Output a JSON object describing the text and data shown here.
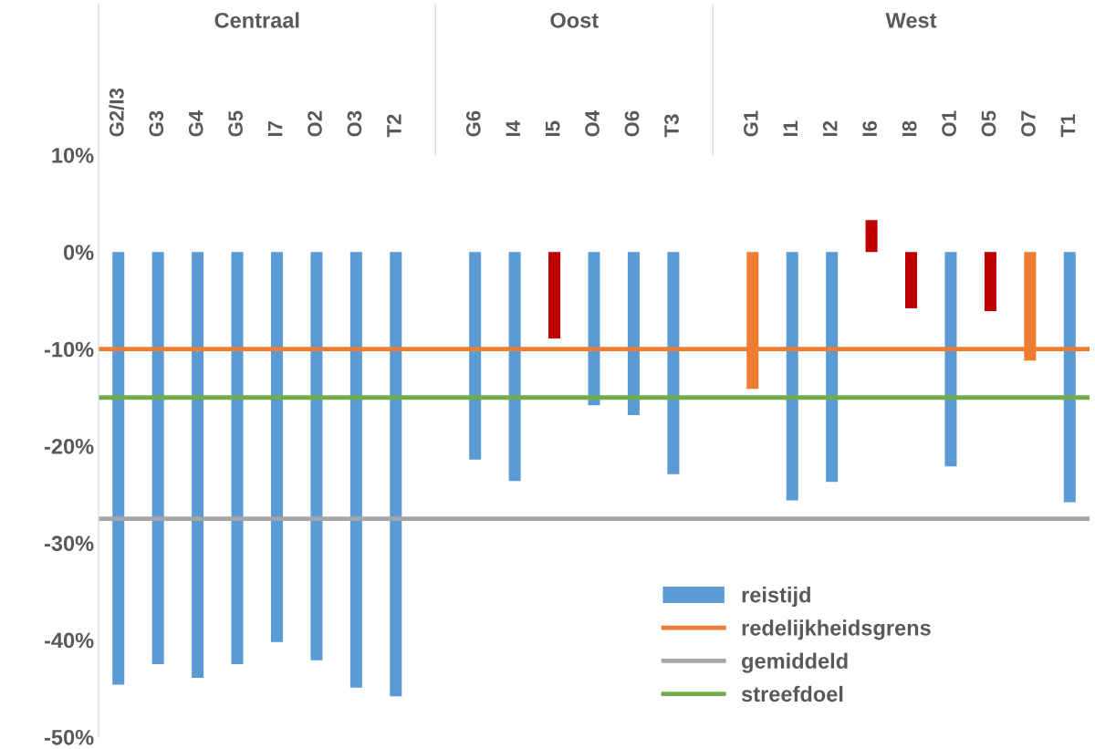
{
  "chart_data": {
    "type": "bar",
    "categories": [
      "G2/I3",
      "G3",
      "G4",
      "G5",
      "I7",
      "O2",
      "O3",
      "T2",
      null,
      "G6",
      "I4",
      "I5",
      "O4",
      "O6",
      "T3",
      null,
      "G1",
      "I1",
      "I2",
      "I6",
      "I8",
      "O1",
      "O5",
      "O7",
      "T1"
    ],
    "series": [
      {
        "name": "reistijd",
        "color": "#5b9bd5",
        "colors": [
          "#5b9bd5",
          "#5b9bd5",
          "#5b9bd5",
          "#5b9bd5",
          "#5b9bd5",
          "#5b9bd5",
          "#5b9bd5",
          "#5b9bd5",
          "#5b9bd5",
          "#5b9bd5",
          "#5b9bd5",
          "#c00000",
          "#5b9bd5",
          "#5b9bd5",
          "#5b9bd5",
          "#5b9bd5",
          "#ed7d31",
          "#5b9bd5",
          "#5b9bd5",
          "#c00000",
          "#c00000",
          "#5b9bd5",
          "#c00000",
          "#ed7d31",
          "#5b9bd5"
        ],
        "values": [
          -44.6,
          -42.5,
          -43.9,
          -42.5,
          -40.2,
          -42.1,
          -44.9,
          -45.8,
          null,
          -21.4,
          -23.6,
          -8.9,
          -15.8,
          -16.8,
          -22.9,
          null,
          -14.1,
          -25.6,
          -23.7,
          3.3,
          -5.8,
          -22.1,
          -6.1,
          -11.2,
          -25.8
        ]
      }
    ],
    "ref_lines": [
      {
        "axis": "y",
        "value": -10,
        "label": "redelijkheidsgrens",
        "color": "#ed7d31"
      },
      {
        "axis": "y",
        "value": -27.5,
        "label": "gemiddeld",
        "color": "#a5a5a5"
      },
      {
        "axis": "y",
        "value": -15,
        "label": "streefdoel",
        "color": "#70ad47"
      }
    ],
    "annotations": [
      "Centraal",
      "Oost",
      "West"
    ],
    "ylim": [
      -50,
      10
    ],
    "yticks": [
      {
        "value": -50,
        "label": "-50%"
      },
      {
        "value": -40,
        "label": "-40%"
      },
      {
        "value": -30,
        "label": "-30%"
      },
      {
        "value": -20,
        "label": "-20%"
      },
      {
        "value": -10,
        "label": "-10%"
      },
      {
        "value": 0,
        "label": "0%"
      },
      {
        "value": 10,
        "label": "10%"
      }
    ],
    "grid": false,
    "legend": "bottom right"
  }
}
